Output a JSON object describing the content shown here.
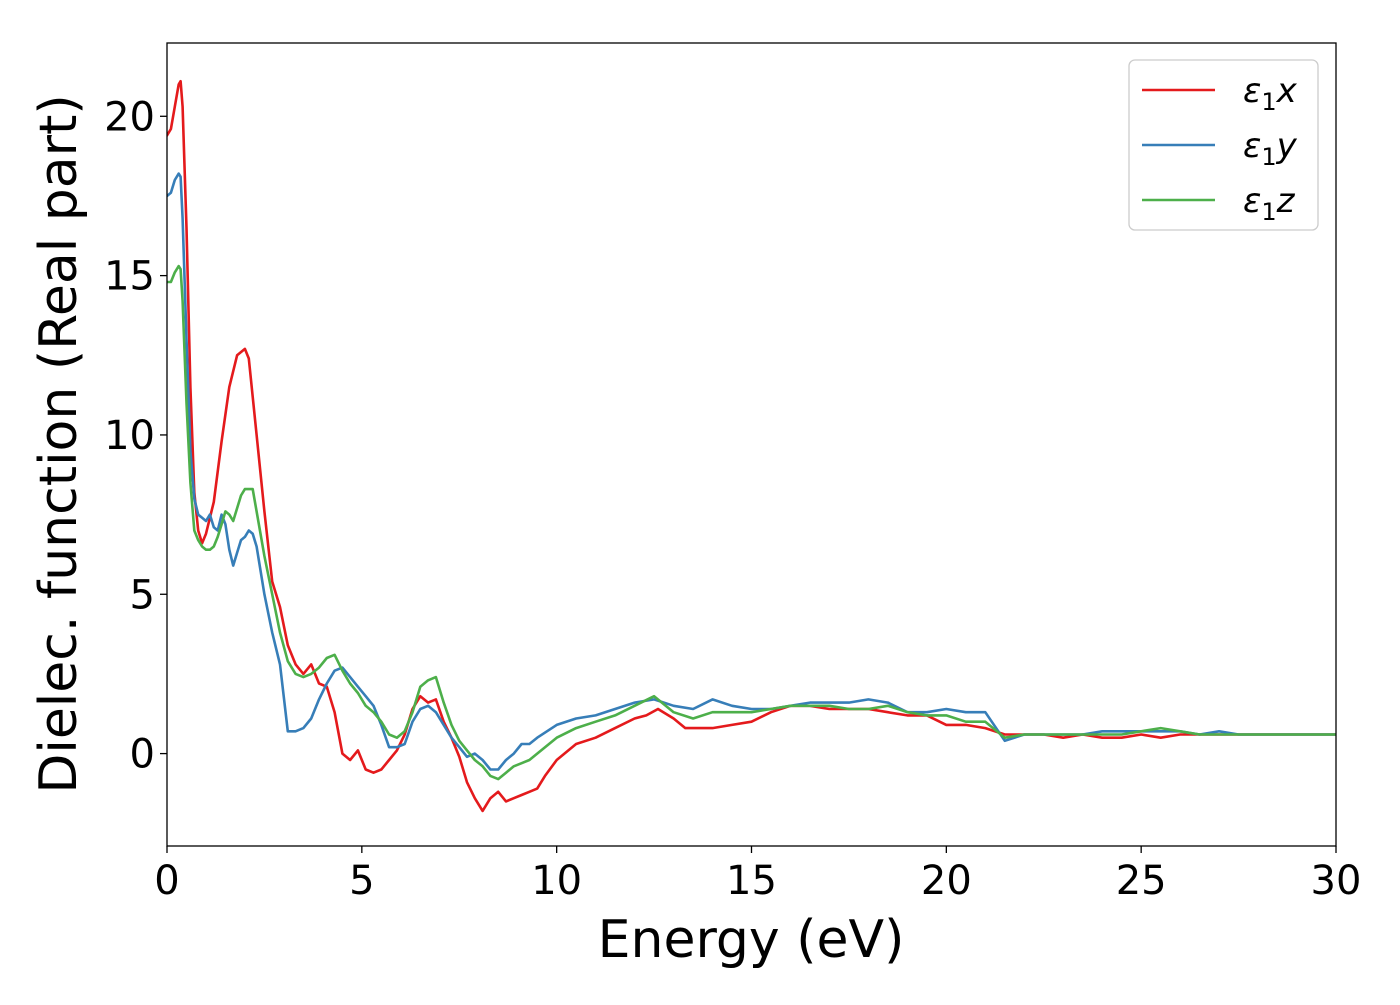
{
  "chart_data": {
    "type": "line",
    "title": "",
    "xlabel": "Energy (eV)",
    "ylabel": "Dielec. function (Real part)",
    "xlim": [
      0,
      30
    ],
    "ylim": [
      -2.9,
      22.3
    ],
    "xticks": [
      0,
      5,
      10,
      15,
      20,
      25,
      30
    ],
    "yticks": [
      0,
      5,
      10,
      15,
      20
    ],
    "grid": false,
    "legend_position": "top-right",
    "series": [
      {
        "name": "ε₁x",
        "legend_main": "ε",
        "legend_sub": "1",
        "legend_suffix": "x",
        "color": "#e41a1c",
        "x": [
          0,
          0.1,
          0.2,
          0.3,
          0.35,
          0.4,
          0.5,
          0.6,
          0.7,
          0.8,
          0.9,
          1.0,
          1.2,
          1.4,
          1.6,
          1.8,
          2.0,
          2.1,
          2.2,
          2.3,
          2.5,
          2.7,
          2.9,
          3.1,
          3.3,
          3.5,
          3.7,
          3.9,
          4.1,
          4.3,
          4.5,
          4.7,
          4.9,
          5.1,
          5.3,
          5.5,
          5.7,
          5.9,
          6.1,
          6.3,
          6.5,
          6.7,
          6.9,
          7.1,
          7.3,
          7.5,
          7.7,
          7.9,
          8.1,
          8.3,
          8.5,
          8.7,
          8.9,
          9.1,
          9.3,
          9.5,
          9.7,
          10,
          10.5,
          11,
          11.5,
          12,
          12.3,
          12.6,
          13,
          13.3,
          13.6,
          14,
          14.5,
          15,
          15.5,
          16,
          16.5,
          17,
          17.5,
          18,
          18.5,
          19,
          19.5,
          20,
          20.5,
          21,
          21.5,
          22,
          22.5,
          23,
          23.5,
          24,
          24.5,
          25,
          25.5,
          26,
          26.5,
          27,
          27.5,
          28,
          28.5,
          29,
          29.5,
          30
        ],
        "y": [
          19.4,
          19.6,
          20.3,
          21.0,
          21.1,
          20.3,
          16.5,
          11.5,
          8.2,
          7.0,
          6.6,
          6.9,
          7.9,
          9.8,
          11.5,
          12.5,
          12.7,
          12.4,
          11.2,
          10.0,
          7.6,
          5.4,
          4.6,
          3.4,
          2.8,
          2.5,
          2.8,
          2.2,
          2.1,
          1.3,
          0.0,
          -0.2,
          0.1,
          -0.5,
          -0.6,
          -0.5,
          -0.2,
          0.1,
          0.6,
          1.4,
          1.8,
          1.6,
          1.7,
          1.0,
          0.5,
          -0.1,
          -0.9,
          -1.4,
          -1.8,
          -1.4,
          -1.2,
          -1.5,
          -1.4,
          -1.3,
          -1.2,
          -1.1,
          -0.7,
          -0.2,
          0.3,
          0.5,
          0.8,
          1.1,
          1.2,
          1.4,
          1.1,
          0.8,
          0.8,
          0.8,
          0.9,
          1.0,
          1.3,
          1.5,
          1.5,
          1.4,
          1.4,
          1.4,
          1.3,
          1.2,
          1.2,
          0.9,
          0.9,
          0.8,
          0.6,
          0.6,
          0.6,
          0.5,
          0.6,
          0.5,
          0.5,
          0.6,
          0.5,
          0.6,
          0.6,
          0.6,
          0.6,
          0.6,
          0.6,
          0.6,
          0.6,
          0.6
        ]
      },
      {
        "name": "ε₁y",
        "legend_main": "ε",
        "legend_sub": "1",
        "legend_suffix": "y",
        "color": "#377eb8",
        "x": [
          0,
          0.1,
          0.2,
          0.3,
          0.35,
          0.4,
          0.5,
          0.6,
          0.7,
          0.8,
          0.9,
          1.0,
          1.1,
          1.2,
          1.3,
          1.4,
          1.5,
          1.6,
          1.7,
          1.8,
          1.9,
          2.0,
          2.1,
          2.2,
          2.3,
          2.5,
          2.7,
          2.9,
          3.1,
          3.3,
          3.5,
          3.7,
          3.9,
          4.1,
          4.3,
          4.5,
          4.7,
          4.9,
          5.1,
          5.3,
          5.5,
          5.7,
          5.9,
          6.1,
          6.3,
          6.5,
          6.7,
          6.9,
          7.1,
          7.3,
          7.5,
          7.7,
          7.9,
          8.1,
          8.3,
          8.5,
          8.7,
          8.9,
          9.1,
          9.3,
          9.5,
          10,
          10.5,
          11,
          11.5,
          12,
          12.5,
          13,
          13.5,
          14,
          14.5,
          15,
          15.5,
          16,
          16.5,
          17,
          17.5,
          18,
          18.5,
          19,
          19.5,
          20,
          20.5,
          21,
          21.5,
          22,
          22.5,
          23,
          23.5,
          24,
          24.5,
          25,
          25.5,
          26,
          26.5,
          27,
          27.5,
          28,
          28.5,
          29,
          29.5,
          30
        ],
        "y": [
          17.5,
          17.6,
          18.0,
          18.2,
          18.1,
          16.8,
          13.0,
          9.5,
          8.0,
          7.5,
          7.4,
          7.3,
          7.5,
          7.1,
          7.0,
          7.5,
          7.2,
          6.4,
          5.9,
          6.3,
          6.7,
          6.8,
          7.0,
          6.9,
          6.5,
          5.0,
          3.8,
          2.8,
          0.7,
          0.7,
          0.8,
          1.1,
          1.7,
          2.2,
          2.6,
          2.7,
          2.4,
          2.1,
          1.8,
          1.5,
          0.9,
          0.2,
          0.2,
          0.3,
          1.0,
          1.4,
          1.5,
          1.3,
          0.9,
          0.5,
          0.2,
          -0.1,
          0.0,
          -0.2,
          -0.5,
          -0.5,
          -0.2,
          0.0,
          0.3,
          0.3,
          0.5,
          0.9,
          1.1,
          1.2,
          1.4,
          1.6,
          1.7,
          1.5,
          1.4,
          1.7,
          1.5,
          1.4,
          1.4,
          1.5,
          1.6,
          1.6,
          1.6,
          1.7,
          1.6,
          1.3,
          1.3,
          1.4,
          1.3,
          1.3,
          0.4,
          0.6,
          0.6,
          0.6,
          0.6,
          0.7,
          0.7,
          0.7,
          0.7,
          0.7,
          0.6,
          0.7,
          0.6,
          0.6,
          0.6,
          0.6,
          0.6,
          0.6
        ]
      },
      {
        "name": "ε₁z",
        "legend_main": "ε",
        "legend_sub": "1",
        "legend_suffix": "z",
        "color": "#4daf4a",
        "x": [
          0,
          0.1,
          0.2,
          0.3,
          0.35,
          0.4,
          0.5,
          0.6,
          0.7,
          0.8,
          0.9,
          1.0,
          1.1,
          1.2,
          1.3,
          1.4,
          1.5,
          1.6,
          1.7,
          1.8,
          1.9,
          2.0,
          2.1,
          2.2,
          2.3,
          2.5,
          2.7,
          2.9,
          3.1,
          3.3,
          3.5,
          3.7,
          3.9,
          4.1,
          4.3,
          4.5,
          4.7,
          4.9,
          5.1,
          5.3,
          5.5,
          5.7,
          5.9,
          6.1,
          6.3,
          6.5,
          6.7,
          6.9,
          7.1,
          7.3,
          7.5,
          7.7,
          7.9,
          8.1,
          8.3,
          8.5,
          8.7,
          8.9,
          9.1,
          9.3,
          9.5,
          10,
          10.5,
          11,
          11.5,
          12,
          12.5,
          13,
          13.5,
          14,
          14.5,
          15,
          15.5,
          16,
          16.5,
          17,
          17.5,
          18,
          18.5,
          19,
          19.5,
          20,
          20.5,
          21,
          21.5,
          22,
          22.5,
          23,
          23.5,
          24,
          24.5,
          25,
          25.5,
          26,
          26.5,
          27,
          27.5,
          28,
          28.5,
          29,
          29.5,
          30
        ],
        "y": [
          14.8,
          14.8,
          15.1,
          15.3,
          15.2,
          14.2,
          11.0,
          8.5,
          7.0,
          6.7,
          6.5,
          6.4,
          6.4,
          6.5,
          6.8,
          7.2,
          7.6,
          7.5,
          7.3,
          7.7,
          8.1,
          8.3,
          8.3,
          8.3,
          7.6,
          6.2,
          5.0,
          3.8,
          2.9,
          2.5,
          2.4,
          2.5,
          2.7,
          3.0,
          3.1,
          2.6,
          2.2,
          1.9,
          1.5,
          1.3,
          1.0,
          0.6,
          0.5,
          0.7,
          1.3,
          2.1,
          2.3,
          2.4,
          1.6,
          0.9,
          0.4,
          0.1,
          -0.2,
          -0.4,
          -0.7,
          -0.8,
          -0.6,
          -0.4,
          -0.3,
          -0.2,
          0.0,
          0.5,
          0.8,
          1.0,
          1.2,
          1.5,
          1.8,
          1.3,
          1.1,
          1.3,
          1.3,
          1.3,
          1.4,
          1.5,
          1.5,
          1.5,
          1.4,
          1.4,
          1.5,
          1.3,
          1.2,
          1.2,
          1.0,
          1.0,
          0.5,
          0.6,
          0.6,
          0.6,
          0.6,
          0.6,
          0.6,
          0.7,
          0.8,
          0.7,
          0.6,
          0.6,
          0.6,
          0.6,
          0.6,
          0.6,
          0.6,
          0.6
        ]
      }
    ]
  }
}
